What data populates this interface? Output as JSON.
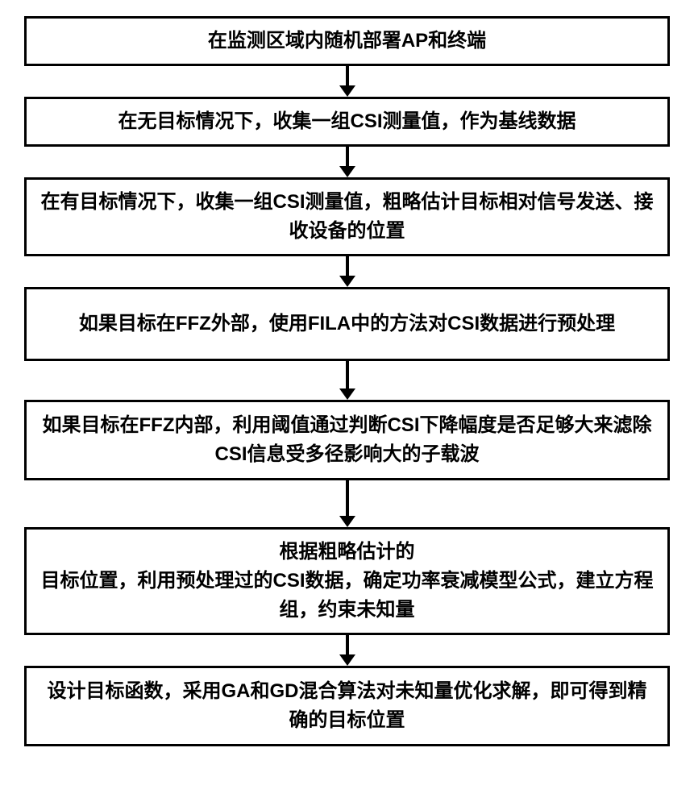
{
  "flowchart": {
    "type": "flowchart",
    "direction": "vertical",
    "background_color": "#ffffff",
    "box_border_color": "#000000",
    "box_border_width": 3,
    "text_color": "#000000",
    "font_weight": 900,
    "font_family": "SimHei",
    "arrow_color": "#000000",
    "arrow_shaft_width": 4,
    "arrow_head_width": 20,
    "arrow_head_height": 14,
    "steps": [
      {
        "id": "step1",
        "text": "在监测区域内随机部署AP和终端",
        "fontsize": 24,
        "min_height": 52,
        "arrow_after_height": 38
      },
      {
        "id": "step2",
        "text": "在无目标情况下，收集一组CSI测量值，作为基线数据",
        "fontsize": 24,
        "min_height": 60,
        "arrow_after_height": 38
      },
      {
        "id": "step3",
        "text": "在有目标情况下，收集一组CSI测量值，粗略估计目标相对信号发送、接收设备的位置",
        "fontsize": 24,
        "min_height": 92,
        "arrow_after_height": 38
      },
      {
        "id": "step4",
        "text": "如果目标在FFZ外部，使用FILA中的方法对CSI数据进行预处理",
        "fontsize": 24,
        "min_height": 92,
        "arrow_after_height": 48
      },
      {
        "id": "step5",
        "text": "如果目标在FFZ内部，利用阈值通过判断CSI下降幅度是否足够大来滤除CSI信息受多径影响大的子载波",
        "fontsize": 24,
        "min_height": 100,
        "arrow_after_height": 58
      },
      {
        "id": "step6",
        "text": "根据粗略估计的\n目标位置，利用预处理过的CSI数据，确定功率衰减模型公式，建立方程组，约束未知量",
        "fontsize": 24,
        "min_height": 130,
        "arrow_after_height": 38
      },
      {
        "id": "step7",
        "text": "设计目标函数，采用GA和GD混合算法对未知量优化求解，即可得到精确的目标位置",
        "fontsize": 24,
        "min_height": 100,
        "arrow_after_height": 0
      }
    ]
  }
}
